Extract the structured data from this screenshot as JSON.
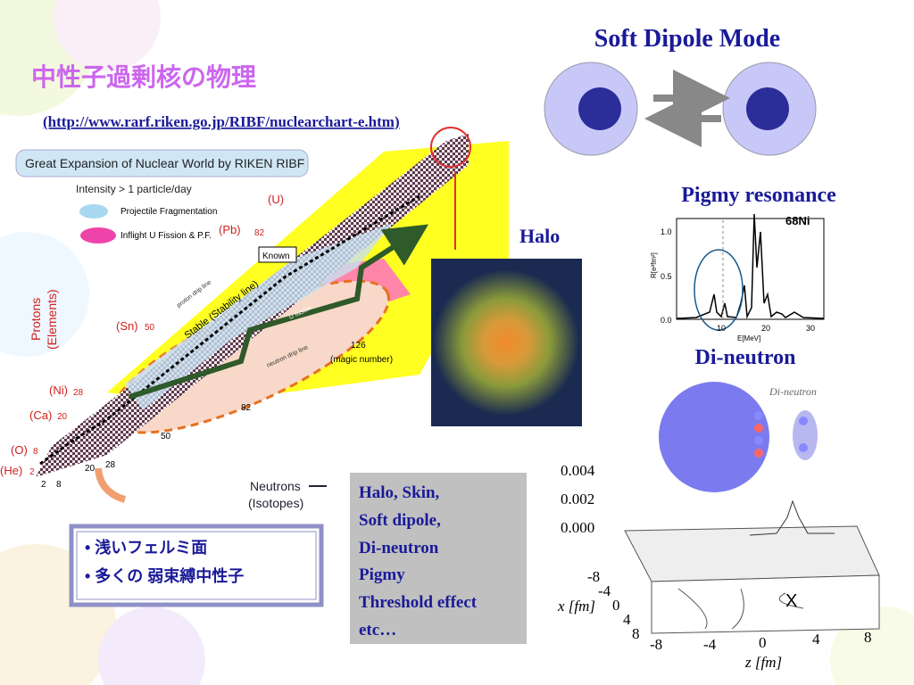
{
  "slide": {
    "title": "中性子過剰核の物理",
    "url": "(http://www.rarf.riken.go.jp/RIBF/nuclearchart-e.htm)",
    "bullets": [
      "• 浅いフェルミ面",
      "• 多くの 弱束縛中性子"
    ],
    "topics": [
      "Halo, Skin,",
      "Soft dipole,",
      "Di-neutron",
      "Pigmy",
      "Threshold effect",
      "etc…"
    ]
  },
  "nuclear_chart": {
    "banner": "Great Expansion of Nuclear World by RIKEN RIBF",
    "intensity": "Intensity > 1 particle/day",
    "legend": [
      "Projectile Fragmentation",
      "Inflight U Fission & P.F."
    ],
    "elements": [
      "(U)",
      "(Pb)",
      "(Sn)",
      "(Ni)",
      "(Ca)",
      "(O)",
      "(He)"
    ],
    "proton_magic": [
      "82",
      "50",
      "28",
      "20",
      "8",
      "2"
    ],
    "neutron_magic": [
      "126",
      "82",
      "50",
      "28",
      "20",
      "8",
      "2"
    ],
    "known": "Known",
    "stable": "Stable (Stability line)",
    "magic_label": "(magic number)",
    "proton_drip": "proton drip line",
    "neutron_drip": "neutron drip line",
    "fission": "U fission",
    "y_axis": [
      "Protons",
      "(Elements)"
    ],
    "x_axis": [
      "Neutrons",
      "(Isotopes)"
    ]
  },
  "soft_dipole": {
    "title": "Soft Dipole Mode"
  },
  "halo": {
    "title": "Halo"
  },
  "pigmy": {
    "title": "Pigmy resonance",
    "nucleus": "68Ni",
    "y_label": "R[e²fm²]",
    "x_label": "E[MeV]",
    "yticks": [
      "1.0",
      "0.5",
      "0.0"
    ],
    "xticks": [
      "10",
      "20",
      "30"
    ]
  },
  "di_neutron": {
    "title": "Di-neutron",
    "label": "Di-neutron"
  },
  "density_plot": {
    "zticks": [
      "0.004",
      "0.002",
      "0.000"
    ],
    "xticks": [
      "-8",
      "-4",
      "0",
      "4",
      "8"
    ],
    "zticks_axis": [
      "-8",
      "-4",
      "0",
      "4",
      "8"
    ],
    "x_label": "x [fm]",
    "z_label": "z [fm]",
    "marker": "X"
  }
}
